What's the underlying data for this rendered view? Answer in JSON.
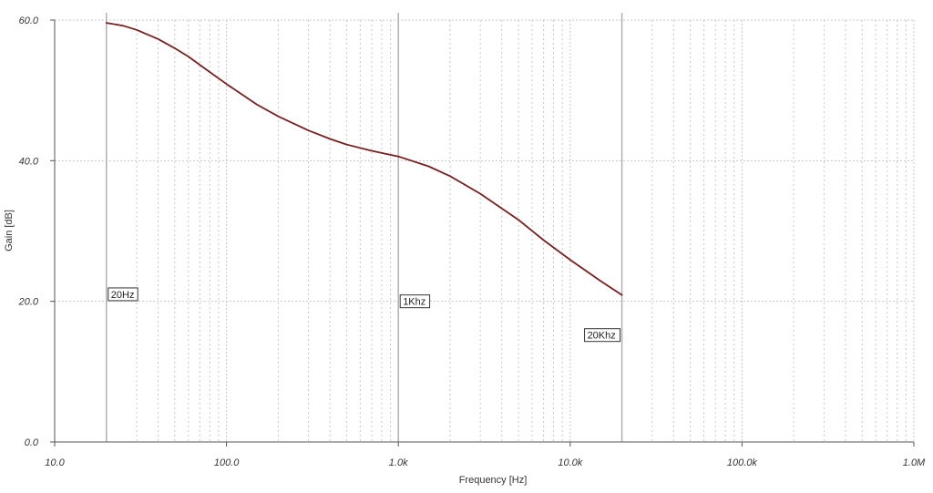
{
  "chart_data": {
    "type": "line",
    "xlabel": "Frequency [Hz]",
    "ylabel": "Gain [dB]",
    "x_scale": "log",
    "xlim": [
      10,
      1000000
    ],
    "ylim": [
      0,
      60
    ],
    "grid": true,
    "x_ticks": [
      {
        "value": 10,
        "label": "10.0"
      },
      {
        "value": 100,
        "label": "100.0"
      },
      {
        "value": 1000,
        "label": "1.0k"
      },
      {
        "value": 10000,
        "label": "10.0k"
      },
      {
        "value": 100000,
        "label": "100.0k"
      },
      {
        "value": 1000000,
        "label": "1.0M"
      }
    ],
    "y_ticks": [
      {
        "value": 0,
        "label": "0.0"
      },
      {
        "value": 20,
        "label": "20.0"
      },
      {
        "value": 40,
        "label": "40.0"
      },
      {
        "value": 60,
        "label": "60.0"
      }
    ],
    "series": [
      {
        "color": "#7a1f1f",
        "x": [
          20,
          25,
          30,
          40,
          50,
          60,
          80,
          100,
          150,
          200,
          300,
          400,
          500,
          700,
          1000,
          1500,
          2000,
          3000,
          5000,
          7000,
          10000,
          15000,
          20000
        ],
        "y": [
          59.6,
          59.2,
          58.6,
          57.3,
          56.0,
          54.8,
          52.6,
          50.9,
          48.0,
          46.3,
          44.3,
          43.1,
          42.3,
          41.4,
          40.6,
          39.2,
          37.8,
          35.3,
          31.6,
          28.7,
          25.9,
          22.9,
          20.9
        ]
      }
    ],
    "markers": [
      {
        "x": 20,
        "label": "20Hz",
        "label_y": 21
      },
      {
        "x": 1000,
        "label": "1Khz",
        "label_y": 20
      },
      {
        "x": 20000,
        "label": "20Khz",
        "label_y": 15.2
      }
    ]
  }
}
